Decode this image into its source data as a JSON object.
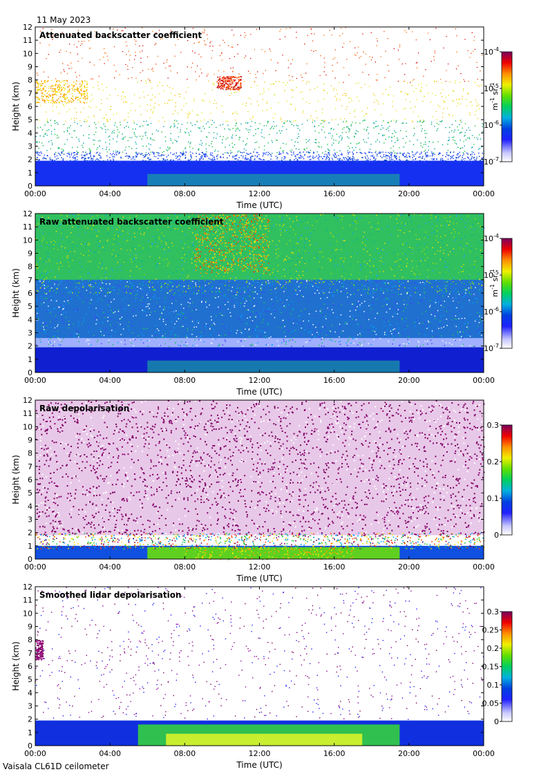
{
  "date": "11 May 2023",
  "footer": "Vaisala CL61D ceilometer",
  "colors": {
    "scale": [
      "#ffffff",
      "#c8c8ff",
      "#4040ff",
      "#0000dd",
      "#00a0ff",
      "#00d080",
      "#40d020",
      "#f0f000",
      "#ffa000",
      "#ff2000",
      "#c00000",
      "#7a0060"
    ]
  },
  "chart_data": [
    {
      "type": "heatmap",
      "title": "Attenuated backscatter coefficient",
      "xlabel": "Time (UTC)",
      "ylabel": "Height (km)",
      "x_ticks": [
        "00:00",
        "04:00",
        "08:00",
        "12:00",
        "16:00",
        "20:00",
        "00:00"
      ],
      "y_ticks": [
        "0",
        "1",
        "2",
        "3",
        "4",
        "5",
        "6",
        "7",
        "8",
        "9",
        "10",
        "11",
        "12"
      ],
      "ylim": [
        0,
        12
      ],
      "xlim_hours": [
        0,
        24
      ],
      "colorbar": {
        "scale": "log",
        "range": [
          1e-07,
          0.0001
        ],
        "ticks": [
          {
            "base": "10",
            "exp": "-7"
          },
          {
            "base": "10",
            "exp": "-6"
          },
          {
            "base": "10",
            "exp": "-5"
          },
          {
            "base": "10",
            "exp": "-4"
          }
        ],
        "unit": {
          "m": "m",
          "mexp": "-1",
          "sr": "sr",
          "srexp": "-1"
        }
      },
      "features": [
        {
          "name": "boundary layer",
          "height_km": [
            0,
            1.9
          ],
          "time_h": [
            0,
            24
          ]
        },
        {
          "name": "high cloud",
          "height_km": [
            7.3,
            8.2
          ],
          "time_h": [
            9.8,
            10.9
          ]
        },
        {
          "name": "mid cloud",
          "height_km": [
            6.5,
            8
          ],
          "time_h": [
            0,
            2.8
          ]
        }
      ]
    },
    {
      "type": "heatmap",
      "title": "Raw attenuated backscatter coefficient",
      "xlabel": "Time (UTC)",
      "ylabel": "Height (km)",
      "x_ticks": [
        "00:00",
        "04:00",
        "08:00",
        "12:00",
        "16:00",
        "20:00",
        "00:00"
      ],
      "y_ticks": [
        "0",
        "1",
        "2",
        "3",
        "4",
        "5",
        "6",
        "7",
        "8",
        "9",
        "10",
        "11",
        "12"
      ],
      "ylim": [
        0,
        12
      ],
      "xlim_hours": [
        0,
        24
      ],
      "colorbar": {
        "scale": "log",
        "range": [
          1e-07,
          0.0001
        ],
        "ticks": [
          {
            "base": "10",
            "exp": "-7"
          },
          {
            "base": "10",
            "exp": "-6"
          },
          {
            "base": "10",
            "exp": "-5"
          },
          {
            "base": "10",
            "exp": "-4"
          }
        ],
        "unit": {
          "m": "m",
          "mexp": "-1",
          "sr": "sr",
          "srexp": "-1"
        }
      }
    },
    {
      "type": "heatmap",
      "title": "Raw depolarisation",
      "xlabel": "Time (UTC)",
      "ylabel": "Height (km)",
      "x_ticks": [
        "00:00",
        "04:00",
        "08:00",
        "12:00",
        "16:00",
        "20:00",
        "00:00"
      ],
      "y_ticks": [
        "0",
        "1",
        "2",
        "3",
        "4",
        "5",
        "6",
        "7",
        "8",
        "9",
        "10",
        "11",
        "12"
      ],
      "ylim": [
        0,
        12
      ],
      "xlim_hours": [
        0,
        24
      ],
      "colorbar": {
        "scale": "linear",
        "range": [
          0,
          0.3
        ],
        "ticks": [
          "0",
          "0.1",
          "0.2",
          "0.3"
        ]
      }
    },
    {
      "type": "heatmap",
      "title": "Smoothed lidar depolarisation",
      "xlabel": "Time (UTC)",
      "ylabel": "Height (km)",
      "x_ticks": [
        "00:00",
        "04:00",
        "08:00",
        "12:00",
        "16:00",
        "20:00",
        "00:00"
      ],
      "y_ticks": [
        "0",
        "1",
        "2",
        "3",
        "4",
        "5",
        "6",
        "7",
        "8",
        "9",
        "10",
        "11",
        "12"
      ],
      "ylim": [
        0,
        12
      ],
      "xlim_hours": [
        0,
        24
      ],
      "colorbar": {
        "scale": "linear",
        "range": [
          0,
          0.3
        ],
        "ticks": [
          "0",
          "0.05",
          "0.1",
          "0.15",
          "0.2",
          "0.25",
          "0.3"
        ]
      }
    }
  ]
}
